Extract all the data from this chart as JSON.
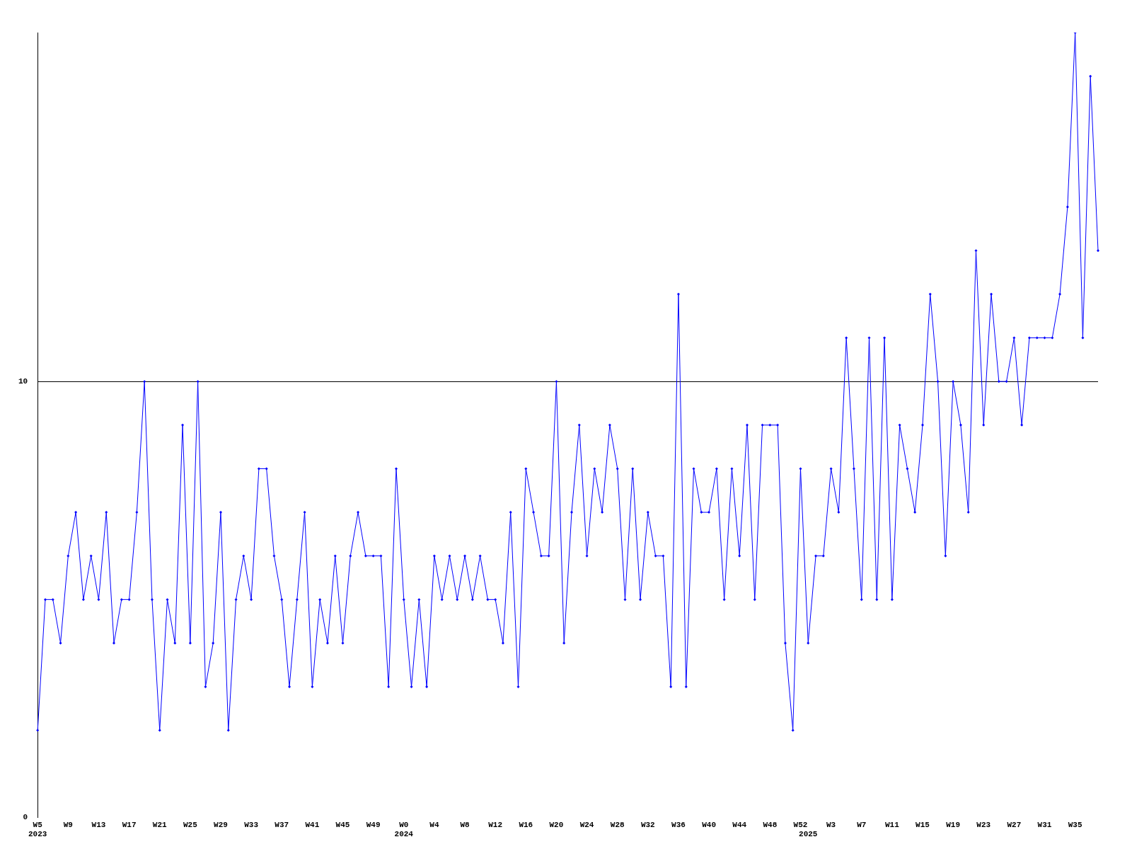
{
  "chart_data": {
    "type": "line",
    "categories": [
      "W5\n2023",
      null,
      null,
      null,
      "W9",
      null,
      null,
      null,
      "W13",
      null,
      null,
      null,
      "W17",
      null,
      null,
      null,
      "W21",
      null,
      null,
      null,
      "W25",
      null,
      null,
      null,
      "W29",
      null,
      null,
      null,
      "W33",
      null,
      null,
      null,
      "W37",
      null,
      null,
      null,
      "W41",
      null,
      null,
      null,
      "W45",
      null,
      null,
      null,
      "W49",
      null,
      null,
      null,
      "W0\n2024",
      null,
      null,
      null,
      "W4",
      null,
      null,
      null,
      "W8",
      null,
      null,
      null,
      "W12",
      null,
      null,
      null,
      "W16",
      null,
      null,
      null,
      "W20",
      null,
      null,
      null,
      "W24",
      null,
      null,
      null,
      "W28",
      null,
      null,
      null,
      "W32",
      null,
      null,
      null,
      "W36",
      null,
      null,
      null,
      "W40",
      null,
      null,
      null,
      "W44",
      null,
      null,
      null,
      "W48",
      null,
      null,
      null,
      "W52",
      "\n2025",
      null,
      null,
      "W3",
      null,
      null,
      null,
      "W7",
      null,
      null,
      null,
      "W11",
      null,
      null,
      null,
      "W15",
      null,
      null,
      null,
      "W19",
      null,
      null,
      null,
      "W23",
      null,
      null,
      null,
      "W27",
      null,
      null,
      null,
      "W31",
      null,
      null,
      null,
      "W35",
      null,
      null,
      null
    ],
    "series": [
      {
        "color": "#0000ff",
        "values": [
          2,
          5,
          5,
          4,
          6,
          7,
          5,
          6,
          5,
          7,
          4,
          5,
          5,
          7,
          10,
          5,
          2,
          5,
          4,
          9,
          4,
          10,
          3,
          4,
          7,
          2,
          5,
          6,
          5,
          8,
          8,
          6,
          5,
          3,
          5,
          7,
          3,
          5,
          4,
          6,
          4,
          6,
          7,
          6,
          6,
          6,
          3,
          8,
          5,
          3,
          5,
          3,
          6,
          5,
          6,
          5,
          6,
          5,
          6,
          5,
          5,
          4,
          7,
          3,
          8,
          7,
          6,
          6,
          10,
          4,
          7,
          9,
          6,
          8,
          7,
          9,
          8,
          5,
          8,
          5,
          7,
          6,
          6,
          3,
          12,
          3,
          8,
          7,
          7,
          8,
          5,
          8,
          6,
          9,
          5,
          9,
          9,
          9,
          4,
          2,
          8,
          4,
          6,
          6,
          8,
          7,
          11,
          8,
          5,
          11,
          5,
          11,
          5,
          9,
          8,
          7,
          9,
          12,
          10,
          6,
          10,
          9,
          7,
          13,
          9,
          12,
          10,
          10,
          11,
          9,
          11,
          11,
          11,
          11,
          12,
          14,
          18,
          11,
          17,
          13
        ]
      }
    ],
    "ylim": [
      0,
      18
    ],
    "yticks": [
      0,
      10
    ],
    "grid": "y",
    "legend": false,
    "marker": "diamond",
    "line_style": "solid"
  }
}
